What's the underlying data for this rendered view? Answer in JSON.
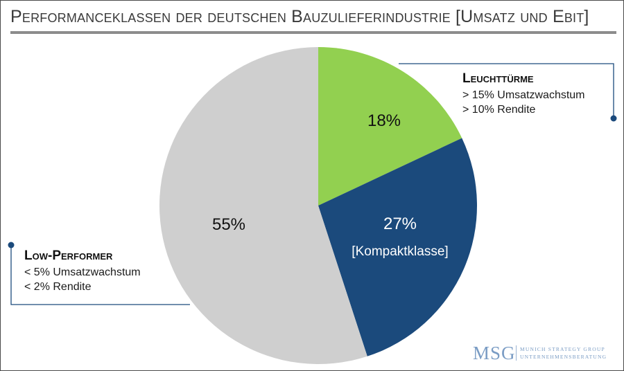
{
  "title": "Performanceklassen der deutschen Bauzulieferindustrie [Umsatz und Ebit]",
  "callouts": {
    "top_right": {
      "heading": "Leuchttürme",
      "line1": "> 15% Umsatzwachstum",
      "line2": "> 10% Rendite"
    },
    "left": {
      "heading": "Low-Performer",
      "line1": "< 5% Umsatzwachstum",
      "line2": "< 2% Rendite"
    }
  },
  "logo": {
    "mark": "MSG",
    "line1": "MUNICH STRATEGY GROUP",
    "line2": "UNTERNEHMENSBERATUNG"
  },
  "colors": {
    "green": "#92d050",
    "navy": "#1b4a7c",
    "grey": "#cfcfcf",
    "connector": "#1b4a7c"
  },
  "chart_data": {
    "type": "pie",
    "slices": [
      {
        "value": 18,
        "label": "18%",
        "sublabel": "",
        "color": "#92d050",
        "text_color": "#111111"
      },
      {
        "value": 27,
        "label": "27%",
        "sublabel": "[Kompaktklasse]",
        "color": "#1b4a7c",
        "text_color": "#ffffff"
      },
      {
        "value": 55,
        "label": "55%",
        "sublabel": "",
        "color": "#cfcfcf",
        "text_color": "#111111"
      }
    ],
    "start_angle": "12 o'clock",
    "direction": "clockwise",
    "legend": "none"
  }
}
